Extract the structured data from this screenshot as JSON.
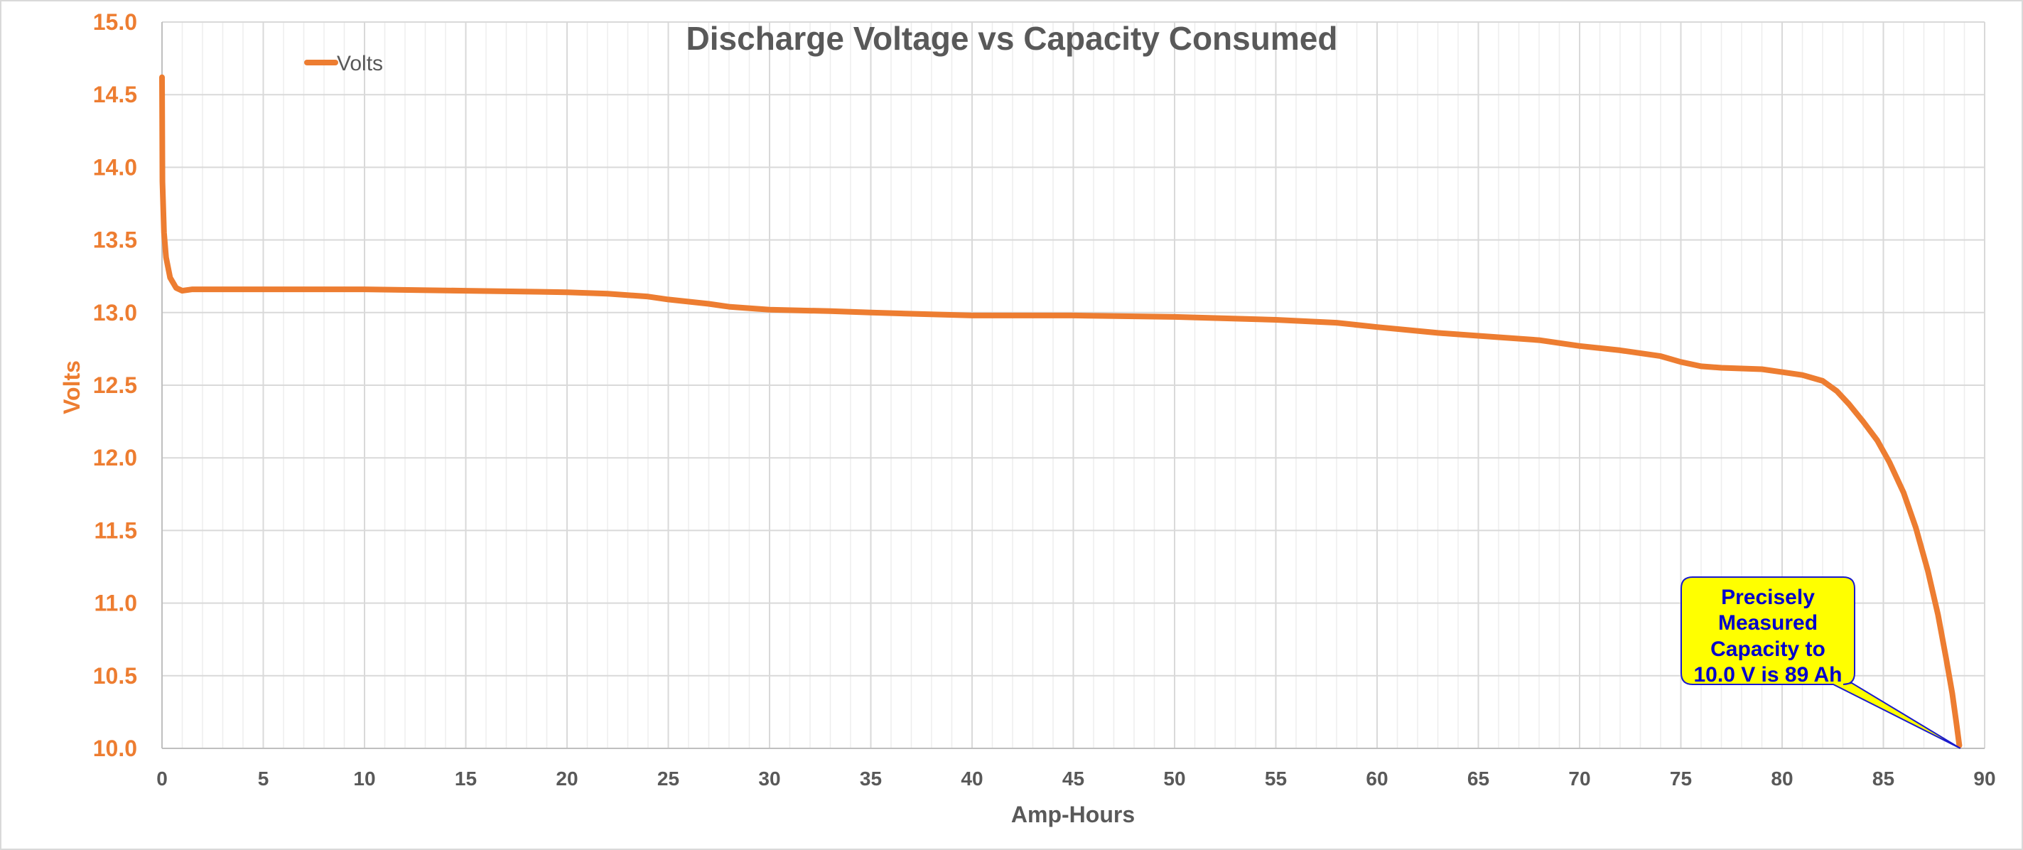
{
  "chart_data": {
    "type": "line",
    "title": "Discharge Voltage vs Capacity Consumed",
    "xlabel": "Amp-Hours",
    "ylabel": "Volts",
    "xlim": [
      0,
      90
    ],
    "ylim": [
      10.0,
      15.0
    ],
    "xticks": [
      "0",
      "5",
      "10",
      "15",
      "20",
      "25",
      "30",
      "35",
      "40",
      "45",
      "50",
      "55",
      "60",
      "65",
      "70",
      "75",
      "80",
      "85",
      "90"
    ],
    "yticks": [
      "10.0",
      "10.5",
      "11.0",
      "11.5",
      "12.0",
      "12.5",
      "13.0",
      "13.5",
      "14.0",
      "14.5",
      "15.0"
    ],
    "grid": true,
    "legend": {
      "placement": "top-left",
      "entries": [
        "Volts"
      ]
    },
    "series": [
      {
        "name": "Volts",
        "color": "#ED7D31",
        "x": [
          0,
          0.02,
          0.1,
          0.2,
          0.4,
          0.7,
          1.0,
          1.5,
          5,
          10,
          15,
          20,
          22,
          24,
          25,
          27,
          28,
          30,
          33,
          35,
          40,
          45,
          50,
          55,
          58,
          60,
          63,
          65,
          68,
          70,
          72,
          74,
          75,
          76,
          77,
          79,
          80,
          81,
          82,
          82.7,
          83.3,
          84,
          84.7,
          85.3,
          86,
          86.6,
          87.2,
          87.7,
          88.1,
          88.4,
          88.6,
          88.75
        ],
        "y": [
          14.62,
          13.9,
          13.55,
          13.38,
          13.24,
          13.17,
          13.15,
          13.16,
          13.16,
          13.16,
          13.15,
          13.14,
          13.13,
          13.11,
          13.09,
          13.06,
          13.04,
          13.02,
          13.01,
          13.0,
          12.98,
          12.98,
          12.97,
          12.95,
          12.93,
          12.9,
          12.86,
          12.84,
          12.81,
          12.77,
          12.74,
          12.7,
          12.66,
          12.63,
          12.62,
          12.61,
          12.59,
          12.57,
          12.53,
          12.46,
          12.37,
          12.25,
          12.12,
          11.97,
          11.76,
          11.52,
          11.22,
          10.92,
          10.62,
          10.38,
          10.18,
          10.02
        ]
      }
    ],
    "annotations": [
      {
        "lines": [
          "Precisely",
          "Measured",
          "Capacity to",
          "10.0 V is 89 Ah"
        ],
        "points_to": {
          "x": 88.8,
          "y": 10.0
        },
        "fill": "#FFFF00",
        "text_color": "#0000CC"
      }
    ]
  }
}
